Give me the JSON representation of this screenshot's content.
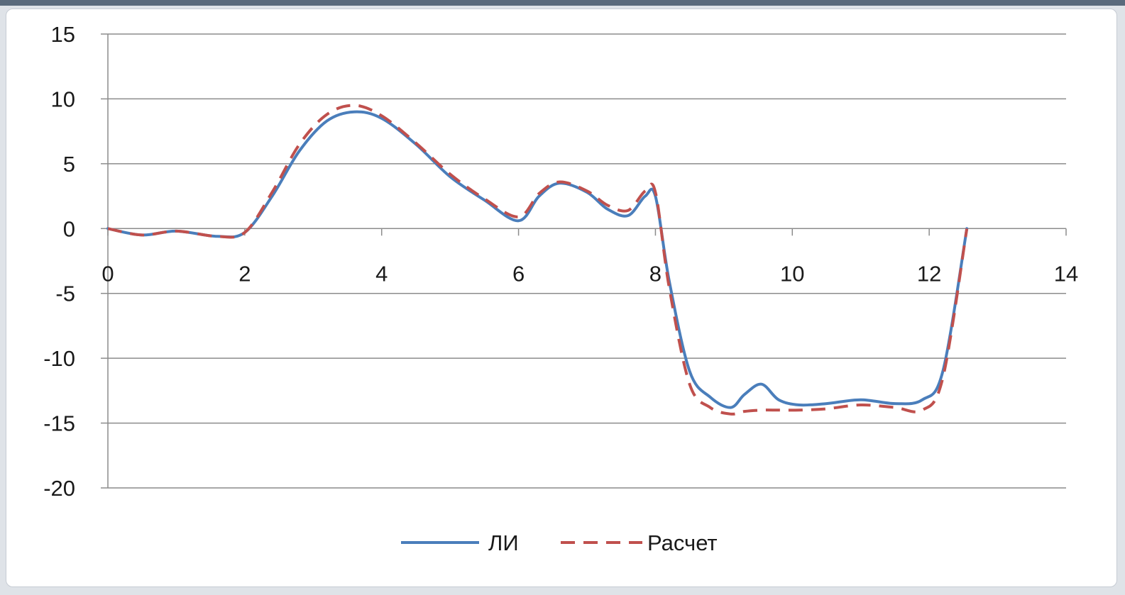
{
  "chart_data": {
    "type": "line",
    "title": "",
    "xlabel": "",
    "ylabel": "",
    "xlim": [
      0,
      14
    ],
    "ylim": [
      -20,
      15
    ],
    "x_ticks": [
      0,
      2,
      4,
      6,
      8,
      10,
      12,
      14
    ],
    "y_ticks": [
      15,
      10,
      5,
      0,
      -5,
      -10,
      -15,
      -20
    ],
    "grid": "horizontal",
    "legend_position": "bottom",
    "series": [
      {
        "name": "ЛИ",
        "color": "#4a7ebb",
        "style": "solid",
        "x": [
          0,
          0.5,
          1.0,
          1.6,
          2.0,
          2.4,
          2.8,
          3.2,
          3.6,
          4.0,
          4.5,
          5.0,
          5.5,
          6.0,
          6.3,
          6.6,
          7.0,
          7.3,
          7.6,
          7.85,
          8.0,
          8.2,
          8.5,
          8.8,
          9.1,
          9.3,
          9.55,
          9.8,
          10.1,
          10.5,
          11.0,
          11.5,
          11.9,
          12.2,
          12.55
        ],
        "y": [
          0,
          -0.5,
          -0.2,
          -0.6,
          -0.3,
          2.5,
          6.0,
          8.3,
          9.0,
          8.5,
          6.5,
          4.0,
          2.2,
          0.6,
          2.5,
          3.5,
          2.8,
          1.5,
          1.0,
          2.5,
          2.5,
          -4.0,
          -11.0,
          -13.0,
          -13.8,
          -12.8,
          -12.0,
          -13.2,
          -13.6,
          -13.5,
          -13.2,
          -13.5,
          -13.2,
          -11.0,
          0
        ]
      },
      {
        "name": "Расчет",
        "color": "#c0504d",
        "style": "dashed",
        "x": [
          0,
          0.5,
          1.0,
          1.6,
          2.0,
          2.4,
          2.8,
          3.2,
          3.6,
          4.0,
          4.5,
          5.0,
          5.5,
          6.0,
          6.3,
          6.6,
          7.0,
          7.3,
          7.6,
          7.85,
          8.0,
          8.2,
          8.5,
          8.8,
          9.1,
          9.3,
          9.55,
          9.8,
          10.1,
          10.5,
          11.0,
          11.5,
          11.9,
          12.2,
          12.55
        ],
        "y": [
          0,
          -0.5,
          -0.2,
          -0.6,
          -0.3,
          2.8,
          6.5,
          8.8,
          9.5,
          8.7,
          6.6,
          4.2,
          2.3,
          0.9,
          2.7,
          3.6,
          2.9,
          1.8,
          1.4,
          2.9,
          2.8,
          -4.5,
          -12.0,
          -13.8,
          -14.3,
          -14.1,
          -14.0,
          -14.0,
          -14.0,
          -13.9,
          -13.6,
          -13.8,
          -14.0,
          -11.5,
          0
        ]
      }
    ]
  }
}
